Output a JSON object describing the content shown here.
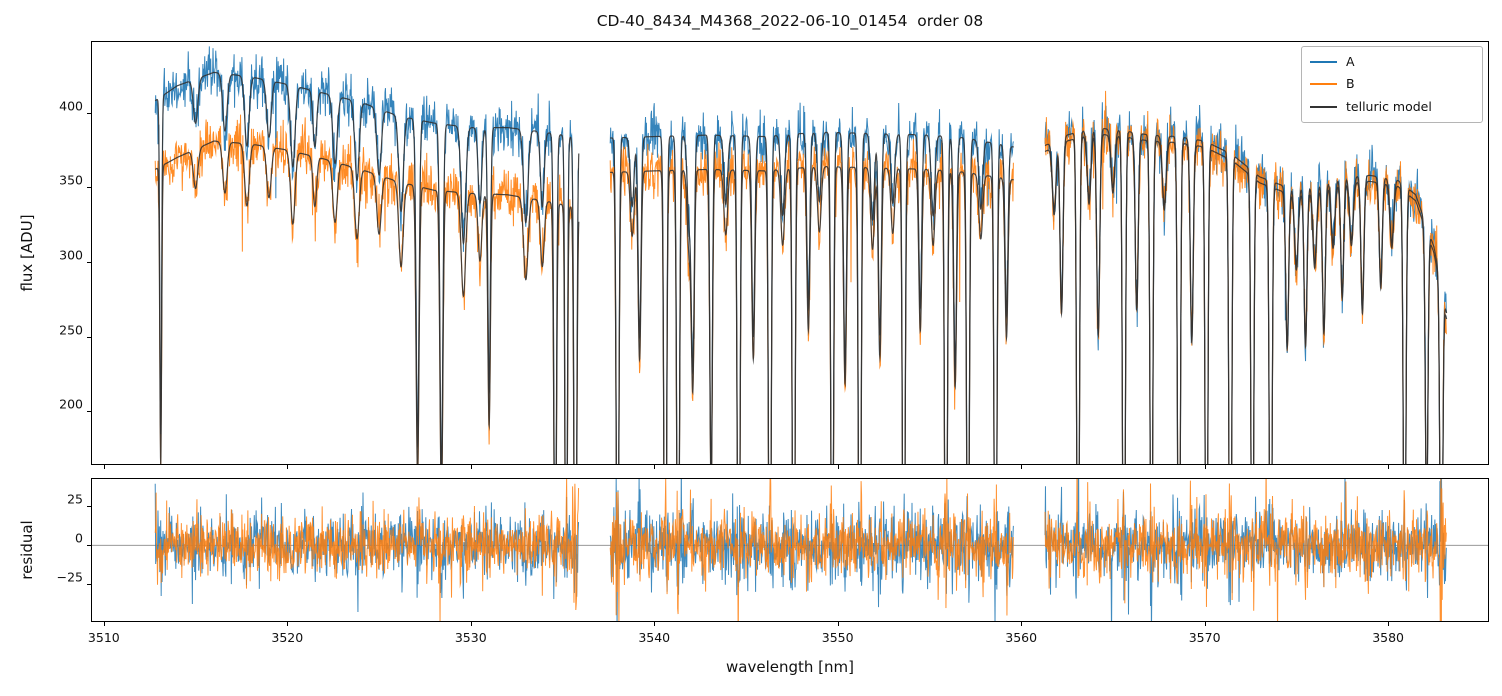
{
  "chart_data": {
    "type": "line",
    "title": "CD-40_8434_M4368_2022-06-10_01454  order 08",
    "xlabel": "wavelength [nm]",
    "xlim": [
      3509.3,
      3585.5
    ],
    "xticks": [
      3510,
      3520,
      3530,
      3540,
      3550,
      3560,
      3570,
      3580
    ],
    "segments": [
      [
        3512.8,
        3535.9
      ],
      [
        3537.6,
        3559.6
      ],
      [
        3561.3,
        3583.2
      ]
    ],
    "panels": [
      {
        "name": "flux",
        "ylabel": "flux [ADU]",
        "ylim": [
          164,
          448
        ],
        "yticks": [
          200,
          250,
          300,
          350,
          400
        ]
      },
      {
        "name": "residual",
        "ylabel": "residual",
        "ylim": [
          -49,
          43
        ],
        "yticks": [
          -25,
          0,
          25
        ],
        "zero_line": true
      }
    ],
    "series": [
      {
        "name": "A",
        "color": "#1f77b4"
      },
      {
        "name": "B",
        "color": "#ff7f0e"
      },
      {
        "name": "telluric model",
        "color": "#333333"
      }
    ],
    "legend": {
      "position": "upper right",
      "entries": [
        "A",
        "B",
        "telluric model"
      ]
    },
    "envelopes": {
      "A": [
        [
          3512.8,
          408
        ],
        [
          3514,
          418
        ],
        [
          3516,
          427
        ],
        [
          3518,
          424
        ],
        [
          3520,
          419
        ],
        [
          3522,
          413
        ],
        [
          3524,
          407
        ],
        [
          3526,
          398
        ],
        [
          3528,
          393
        ],
        [
          3530,
          390
        ],
        [
          3532,
          390
        ],
        [
          3534,
          387
        ],
        [
          3535.9,
          383
        ],
        [
          3537.6,
          383
        ],
        [
          3540,
          384
        ],
        [
          3543,
          385
        ],
        [
          3546,
          384
        ],
        [
          3549,
          387
        ],
        [
          3552,
          386
        ],
        [
          3555,
          385
        ],
        [
          3557,
          383
        ],
        [
          3559.6,
          377
        ],
        [
          3561.3,
          378
        ],
        [
          3562.5,
          385
        ],
        [
          3564,
          390
        ],
        [
          3565.5,
          388
        ],
        [
          3567,
          385
        ],
        [
          3568.5,
          384
        ],
        [
          3570,
          381
        ],
        [
          3571.5,
          372
        ],
        [
          3573,
          357
        ],
        [
          3574.5,
          350
        ],
        [
          3576,
          352
        ],
        [
          3577.5,
          357
        ],
        [
          3579,
          358
        ],
        [
          3580.5,
          355
        ],
        [
          3581.5,
          345
        ],
        [
          3582.5,
          310
        ],
        [
          3583.2,
          265
        ]
      ],
      "B": [
        [
          3512.8,
          362
        ],
        [
          3514,
          370
        ],
        [
          3516,
          381
        ],
        [
          3518,
          379
        ],
        [
          3520,
          375
        ],
        [
          3522,
          369
        ],
        [
          3524,
          362
        ],
        [
          3526,
          354
        ],
        [
          3528,
          348
        ],
        [
          3530,
          346
        ],
        [
          3532,
          345
        ],
        [
          3534,
          341
        ],
        [
          3535.9,
          336
        ],
        [
          3537.6,
          360
        ],
        [
          3540,
          361
        ],
        [
          3543,
          362
        ],
        [
          3546,
          361
        ],
        [
          3549,
          364
        ],
        [
          3552,
          363
        ],
        [
          3555,
          362
        ],
        [
          3557,
          360
        ],
        [
          3559.6,
          355
        ],
        [
          3561.3,
          374
        ],
        [
          3562.5,
          381
        ],
        [
          3564,
          386
        ],
        [
          3565.5,
          384
        ],
        [
          3567,
          381
        ],
        [
          3568.5,
          380
        ],
        [
          3570,
          377
        ],
        [
          3571.5,
          368
        ],
        [
          3573,
          353
        ],
        [
          3574.5,
          346
        ],
        [
          3576,
          348
        ],
        [
          3577.5,
          353
        ],
        [
          3579,
          354
        ],
        [
          3580.5,
          351
        ],
        [
          3581.5,
          341
        ],
        [
          3582.5,
          306
        ],
        [
          3583.2,
          261
        ]
      ]
    },
    "telluric_lines": [
      [
        3513.1,
        0.55,
        0.05
      ],
      [
        3515.0,
        0.07,
        0.12
      ],
      [
        3516.6,
        0.09,
        0.12
      ],
      [
        3517.8,
        0.11,
        0.12
      ],
      [
        3519.0,
        0.09,
        0.12
      ],
      [
        3520.3,
        0.13,
        0.12
      ],
      [
        3521.5,
        0.09,
        0.1
      ],
      [
        3522.6,
        0.11,
        0.12
      ],
      [
        3523.8,
        0.13,
        0.12
      ],
      [
        3525.0,
        0.11,
        0.12
      ],
      [
        3526.2,
        0.16,
        0.12
      ],
      [
        3527.1,
        0.55,
        0.08
      ],
      [
        3528.4,
        0.6,
        0.08
      ],
      [
        3529.6,
        0.2,
        0.12
      ],
      [
        3530.5,
        0.13,
        0.1
      ],
      [
        3531.0,
        0.45,
        0.07
      ],
      [
        3533.0,
        0.16,
        0.12
      ],
      [
        3533.9,
        0.13,
        0.1
      ],
      [
        3534.6,
        0.8,
        0.07
      ],
      [
        3535.2,
        0.95,
        0.06
      ],
      [
        3535.7,
        1.0,
        0.07
      ],
      [
        3538.0,
        0.9,
        0.07
      ],
      [
        3538.8,
        0.12,
        0.1
      ],
      [
        3539.2,
        0.35,
        0.08
      ],
      [
        3540.6,
        1.0,
        0.07
      ],
      [
        3541.3,
        0.95,
        0.07
      ],
      [
        3541.9,
        0.15,
        0.1
      ],
      [
        3542.1,
        0.4,
        0.08
      ],
      [
        3543.1,
        0.6,
        0.07
      ],
      [
        3543.9,
        0.12,
        0.1
      ],
      [
        3544.6,
        1.0,
        0.07
      ],
      [
        3545.4,
        0.35,
        0.08
      ],
      [
        3546.3,
        0.95,
        0.07
      ],
      [
        3547.0,
        0.14,
        0.1
      ],
      [
        3547.6,
        1.0,
        0.07
      ],
      [
        3548.4,
        0.3,
        0.08
      ],
      [
        3549.0,
        0.12,
        0.1
      ],
      [
        3549.7,
        0.9,
        0.07
      ],
      [
        3550.4,
        0.4,
        0.08
      ],
      [
        3551.2,
        1.0,
        0.07
      ],
      [
        3551.9,
        0.15,
        0.1
      ],
      [
        3552.3,
        0.35,
        0.08
      ],
      [
        3553.0,
        0.12,
        0.1
      ],
      [
        3553.6,
        0.95,
        0.07
      ],
      [
        3554.5,
        0.3,
        0.08
      ],
      [
        3555.2,
        0.14,
        0.1
      ],
      [
        3555.9,
        1.0,
        0.07
      ],
      [
        3556.4,
        0.4,
        0.08
      ],
      [
        3557.1,
        0.9,
        0.07
      ],
      [
        3557.8,
        0.12,
        0.1
      ],
      [
        3558.6,
        1.0,
        0.07
      ],
      [
        3559.2,
        0.3,
        0.08
      ],
      [
        3559.9,
        0.7,
        0.07
      ],
      [
        3561.8,
        0.12,
        0.1
      ],
      [
        3562.2,
        0.3,
        0.08
      ],
      [
        3563.1,
        0.95,
        0.07
      ],
      [
        3563.7,
        0.12,
        0.1
      ],
      [
        3564.2,
        0.35,
        0.08
      ],
      [
        3565.0,
        0.1,
        0.1
      ],
      [
        3565.6,
        1.0,
        0.07
      ],
      [
        3566.3,
        0.3,
        0.08
      ],
      [
        3567.1,
        0.9,
        0.07
      ],
      [
        3567.8,
        0.12,
        0.1
      ],
      [
        3568.6,
        1.0,
        0.07
      ],
      [
        3569.3,
        0.35,
        0.08
      ],
      [
        3570.1,
        0.95,
        0.07
      ],
      [
        3571.4,
        1.0,
        0.07
      ],
      [
        3572.6,
        0.9,
        0.07
      ],
      [
        3573.6,
        0.95,
        0.07
      ],
      [
        3574.5,
        0.3,
        0.08
      ],
      [
        3575.0,
        0.15,
        0.1
      ],
      [
        3575.5,
        0.3,
        0.08
      ],
      [
        3576.0,
        0.15,
        0.1
      ],
      [
        3576.5,
        0.28,
        0.08
      ],
      [
        3577.0,
        0.12,
        0.1
      ],
      [
        3577.5,
        0.22,
        0.08
      ],
      [
        3578.0,
        0.12,
        0.1
      ],
      [
        3578.6,
        0.25,
        0.08
      ],
      [
        3579.6,
        0.2,
        0.08
      ],
      [
        3580.2,
        0.12,
        0.1
      ],
      [
        3580.9,
        0.85,
        0.07
      ],
      [
        3582.1,
        0.6,
        0.07
      ],
      [
        3582.9,
        0.9,
        0.07
      ]
    ],
    "noise": {
      "flux_sigma": 8.5,
      "residual_sigma": 9.5
    }
  }
}
